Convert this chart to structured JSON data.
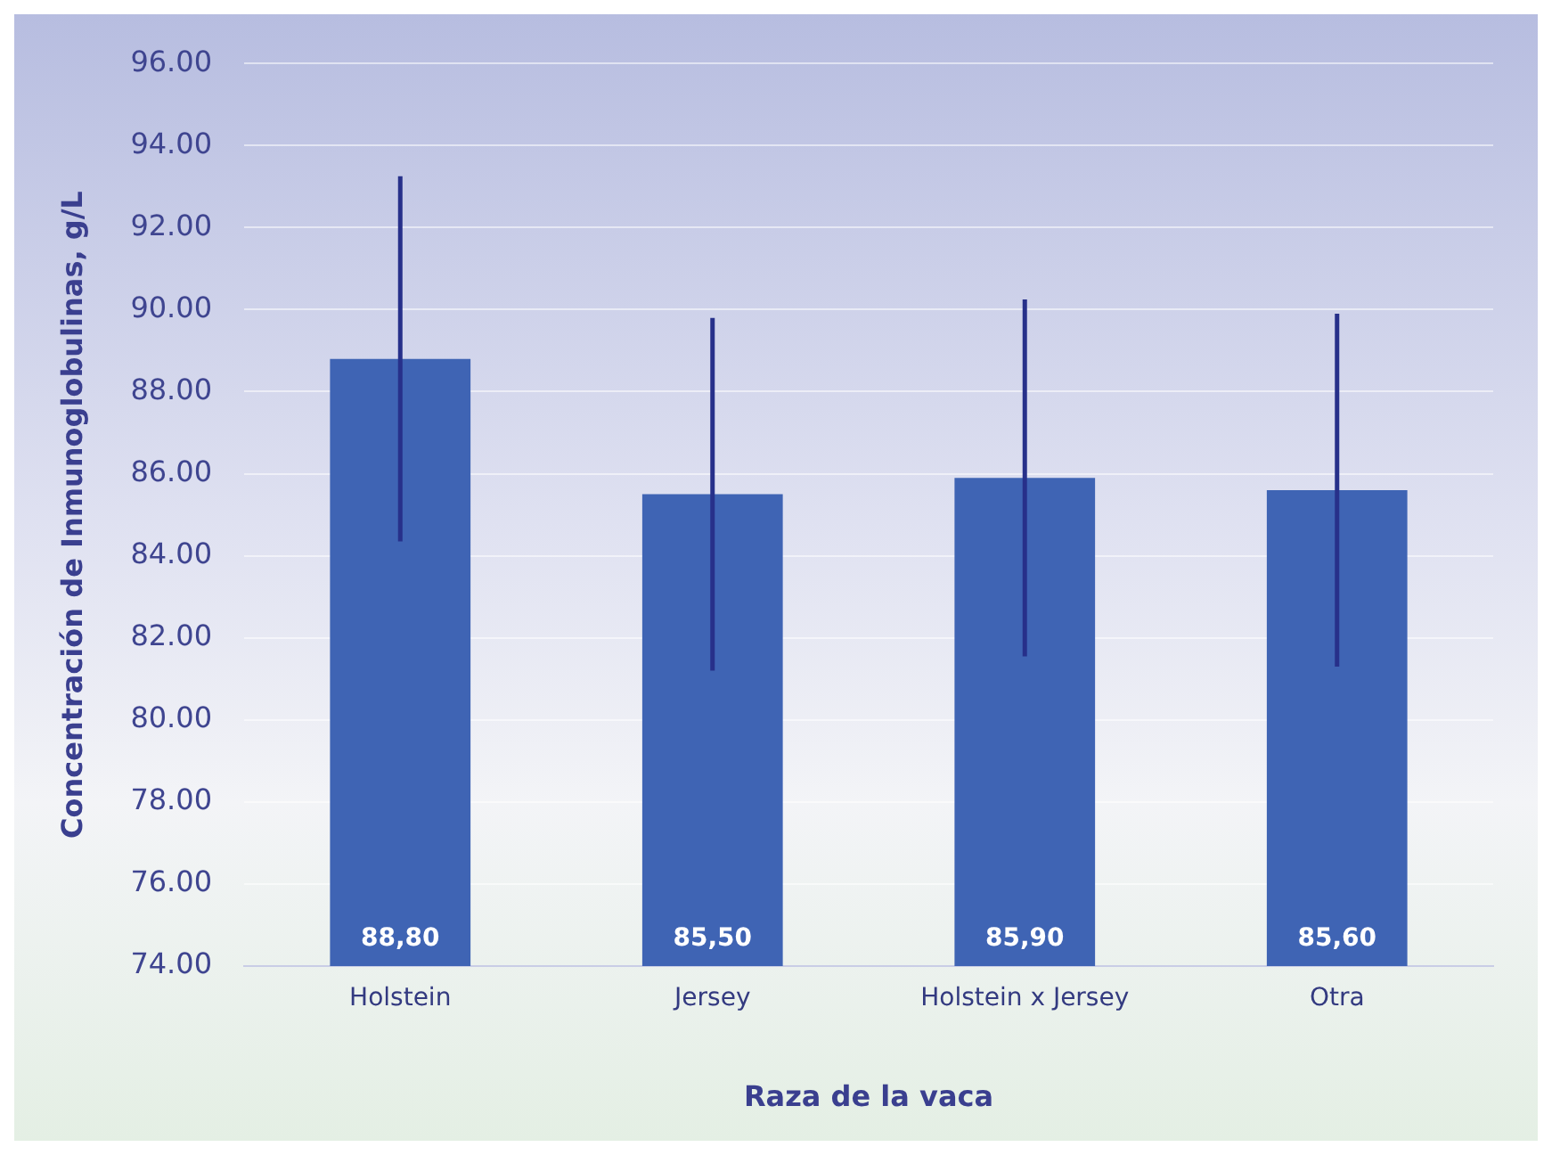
{
  "chart_data": {
    "type": "bar",
    "xlabel": "Raza de la vaca",
    "ylabel": "Concentración de Inmunoglobulinas, g/L",
    "categories": [
      "Holstein",
      "Jersey",
      "Holstein x Jersey",
      "Otra"
    ],
    "values": [
      88.8,
      85.5,
      85.9,
      85.6
    ],
    "value_labels": [
      "88,80",
      "85,50",
      "85,90",
      "85,60"
    ],
    "errors": [
      4.45,
      4.3,
      4.35,
      4.3
    ],
    "color": "#3f64b4",
    "ylim": [
      74,
      96
    ],
    "yticks": [
      {
        "value": 74,
        "label": "74.00"
      },
      {
        "value": 76,
        "label": "76.00"
      },
      {
        "value": 78,
        "label": "78.00"
      },
      {
        "value": 80,
        "label": "80.00"
      },
      {
        "value": 82,
        "label": "82.00"
      },
      {
        "value": 84,
        "label": "84.00"
      },
      {
        "value": 86,
        "label": "86.00"
      },
      {
        "value": 88,
        "label": "88.00"
      },
      {
        "value": 90,
        "label": "90.00"
      },
      {
        "value": 92,
        "label": "92.00"
      },
      {
        "value": 94,
        "label": "94.00"
      },
      {
        "value": 96,
        "label": "96.00"
      }
    ],
    "grid": "y",
    "legend": false
  }
}
